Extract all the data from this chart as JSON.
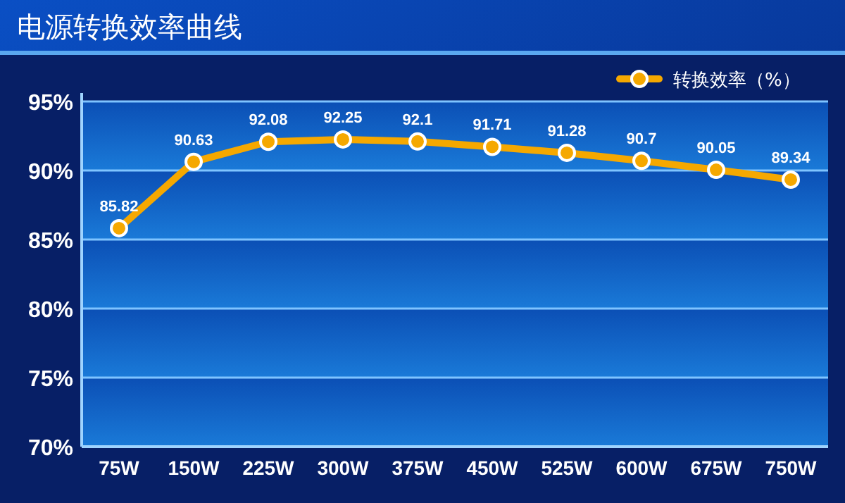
{
  "chart_data": {
    "type": "line",
    "title": "电源转换效率曲线",
    "categories": [
      "75W",
      "150W",
      "225W",
      "300W",
      "375W",
      "450W",
      "525W",
      "600W",
      "675W",
      "750W"
    ],
    "series": [
      {
        "name": "转换效率（%）",
        "color": "#f5a800",
        "values": [
          85.82,
          90.63,
          92.08,
          92.25,
          92.1,
          91.71,
          91.28,
          90.7,
          90.05,
          89.34
        ]
      }
    ],
    "ylim": [
      70,
      95
    ],
    "yticks": [
      {
        "value": 70,
        "label": "70%"
      },
      {
        "value": 75,
        "label": "75%"
      },
      {
        "value": 80,
        "label": "80%"
      },
      {
        "value": 85,
        "label": "85%"
      },
      {
        "value": 90,
        "label": "90%"
      },
      {
        "value": 95,
        "label": "95%"
      }
    ],
    "grid": "y",
    "legend": "top right",
    "marker": "circle",
    "data_labels": true
  }
}
